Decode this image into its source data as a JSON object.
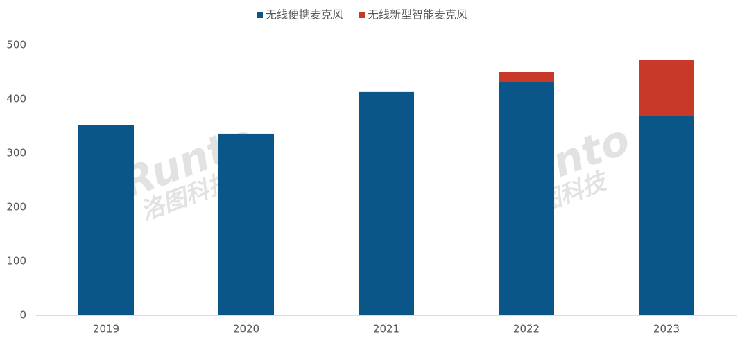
{
  "chart_data": {
    "type": "stacked_bar",
    "categories": [
      "2019",
      "2020",
      "2021",
      "2022",
      "2023"
    ],
    "series": [
      {
        "name": "无线便携麦克风",
        "color": "#0a5688",
        "values": [
          352,
          336,
          413,
          431,
          369
        ]
      },
      {
        "name": "无线新型智能麦克风",
        "color": "#c9392a",
        "values": [
          null,
          null,
          null,
          19,
          104
        ]
      }
    ],
    "ylim": [
      0,
      500
    ],
    "yticks": [
      0,
      100,
      200,
      300,
      400,
      500
    ],
    "grid": false,
    "legend": "top",
    "watermark": "Runto",
    "watermark_cn": "洛图科技"
  }
}
